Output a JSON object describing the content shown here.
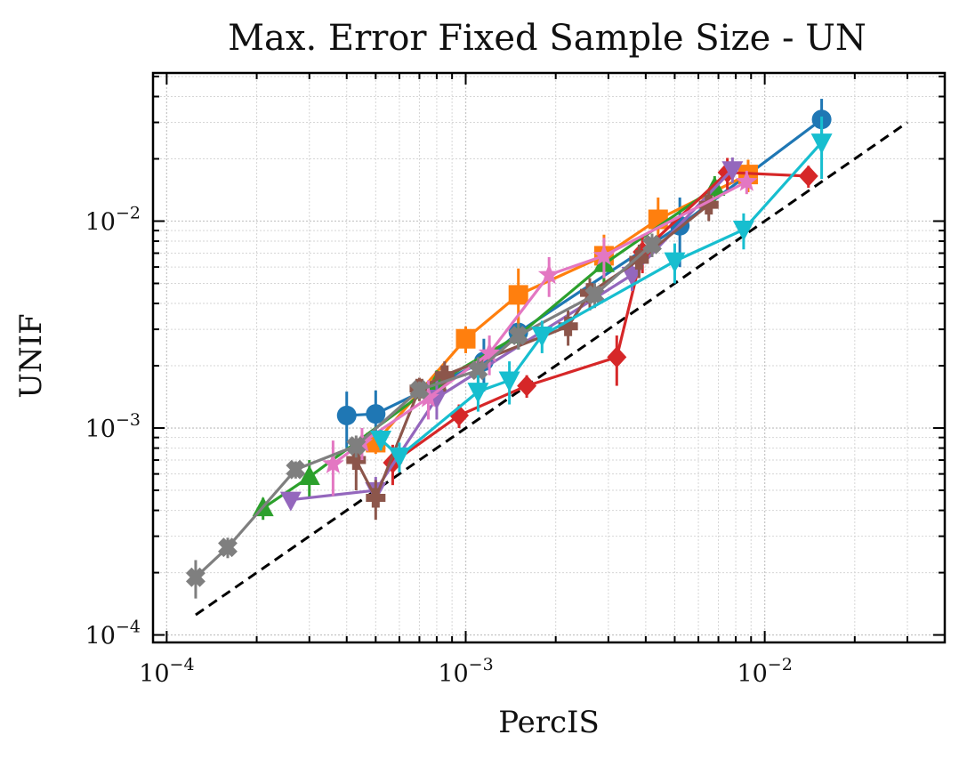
{
  "chart_data": {
    "type": "scatter",
    "title": "Max. Error Fixed Sample Size - UN",
    "xlabel": "PercIS",
    "ylabel": "UNIF",
    "xscale": "log",
    "yscale": "log",
    "xlim": [
      9e-05,
      0.04
    ],
    "ylim": [
      9.2e-05,
      0.052
    ],
    "grid": true,
    "legend": "none",
    "x_ticks": [
      {
        "base": "10",
        "exp": "−4",
        "value": 0.0001
      },
      {
        "base": "10",
        "exp": "−3",
        "value": 0.001
      },
      {
        "base": "10",
        "exp": "−2",
        "value": 0.01
      }
    ],
    "y_ticks": [
      {
        "base": "10",
        "exp": "−4",
        "value": 0.0001
      },
      {
        "base": "10",
        "exp": "−3",
        "value": 0.001
      },
      {
        "base": "10",
        "exp": "−2",
        "value": 0.01
      }
    ],
    "reference_line": {
      "style": "dashed",
      "color": "#000000",
      "x": [
        0.000125,
        0.03
      ],
      "y": [
        0.000125,
        0.03
      ]
    },
    "series": [
      {
        "color": "#1f77b4",
        "marker": "circle",
        "x": [
          0.0004,
          0.0005,
          0.00115,
          0.0015,
          0.0052,
          0.0155
        ],
        "y": [
          0.00115,
          0.00117,
          0.0021,
          0.0029,
          0.0095,
          0.031
        ],
        "err": [
          0.00035,
          0.00035,
          0.0006,
          0.0005,
          0.0035,
          0.008
        ]
      },
      {
        "color": "#ff7f0e",
        "marker": "square",
        "x": [
          0.0005,
          0.001,
          0.0015,
          0.0029,
          0.0044,
          0.0088
        ],
        "y": [
          0.00085,
          0.0027,
          0.0044,
          0.0068,
          0.0102,
          0.0168
        ],
        "err": [
          0.0001,
          0.0004,
          0.0015,
          0.0018,
          0.0028,
          0.003
        ]
      },
      {
        "color": "#2ca02c",
        "marker": "triangle-up",
        "x": [
          0.00021,
          0.0003,
          0.0008,
          0.0015,
          0.0029,
          0.0068
        ],
        "y": [
          0.00041,
          0.00058,
          0.00165,
          0.0028,
          0.0062,
          0.0145
        ],
        "err": [
          5e-05,
          0.00012,
          0.00025,
          0.0004,
          0.0012,
          0.002
        ]
      },
      {
        "color": "#d62728",
        "marker": "diamond",
        "x": [
          0.00057,
          0.00095,
          0.0016,
          0.0032,
          0.0039,
          0.0075,
          0.014
        ],
        "y": [
          0.00068,
          0.00115,
          0.0016,
          0.0022,
          0.0071,
          0.0172,
          0.0165
        ],
        "err": [
          0.00015,
          0.00015,
          0.0002,
          0.0006,
          0.0015,
          0.003,
          0.002
        ]
      },
      {
        "color": "#9467bd",
        "marker": "triangle-down",
        "x": [
          0.00026,
          0.0005,
          0.0008,
          0.0036,
          0.0078
        ],
        "y": [
          0.00045,
          0.0005,
          0.0014,
          0.0055,
          0.0178
        ],
        "err": [
          4e-05,
          8e-05,
          0.0003,
          0.0009,
          0.0025
        ]
      },
      {
        "color": "#8c564b",
        "marker": "plus-filled",
        "x": [
          0.00043,
          0.0005,
          0.0007,
          0.00085,
          0.0022,
          0.0026,
          0.0038,
          0.0065
        ],
        "y": [
          0.0007,
          0.00046,
          0.00155,
          0.0018,
          0.0031,
          0.0045,
          0.0065,
          0.012
        ],
        "err": [
          0.0002,
          0.0001,
          0.0002,
          0.0003,
          0.0006,
          0.0008,
          0.0012,
          0.002
        ]
      },
      {
        "color": "#e377c2",
        "marker": "star",
        "x": [
          0.00036,
          0.00045,
          0.00075,
          0.0012,
          0.0019,
          0.0029,
          0.0087
        ],
        "y": [
          0.00067,
          0.00085,
          0.0014,
          0.0023,
          0.0055,
          0.0068,
          0.0155
        ],
        "err": [
          0.0002,
          0.00015,
          0.0003,
          0.0005,
          0.0012,
          0.0015,
          0.002
        ]
      },
      {
        "color": "#7f7f7f",
        "marker": "x-filled",
        "x": [
          0.000125,
          0.00016,
          0.00027,
          0.00043,
          0.0007,
          0.0011,
          0.0015,
          0.0027,
          0.0042
        ],
        "y": [
          0.00019,
          0.000265,
          0.00063,
          0.00082,
          0.00153,
          0.0019,
          0.0028,
          0.0044,
          0.0077
        ],
        "err": [
          4e-05,
          3e-05,
          6e-05,
          0.0001,
          0.00015,
          0.0003,
          0.0004,
          0.0006,
          0.001
        ]
      },
      {
        "color": "#17becf",
        "marker": "tri-down",
        "x": [
          0.00052,
          0.0006,
          0.0011,
          0.0014,
          0.0018,
          0.005,
          0.0085,
          0.0155
        ],
        "y": [
          0.00088,
          0.00073,
          0.0015,
          0.0017,
          0.0028,
          0.0064,
          0.0091,
          0.024
        ],
        "err": [
          0.0001,
          0.00012,
          0.0003,
          0.0004,
          0.0005,
          0.0014,
          0.0018,
          0.008
        ]
      }
    ]
  }
}
